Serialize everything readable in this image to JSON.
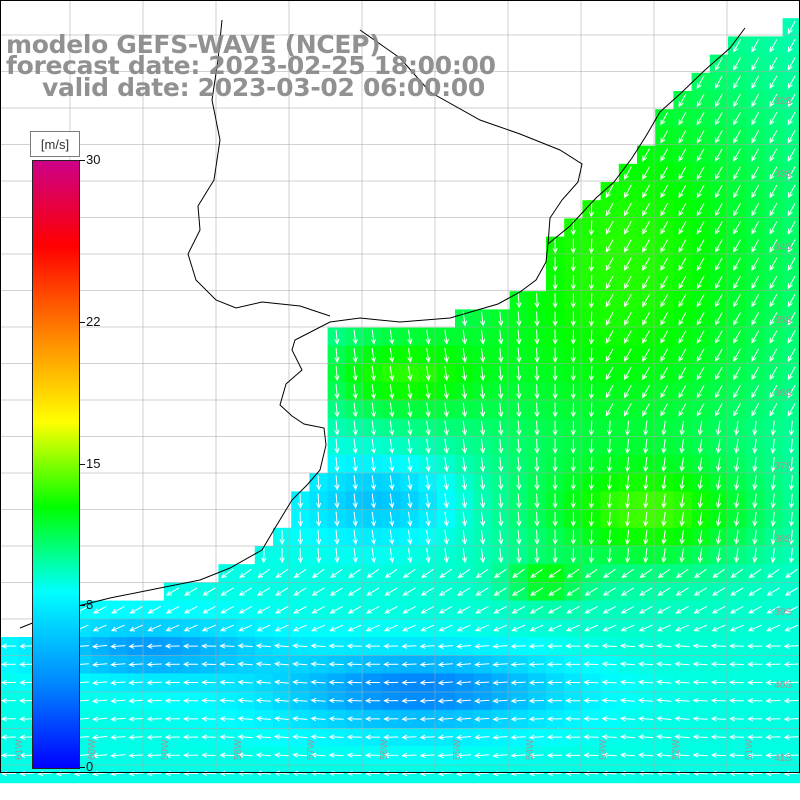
{
  "title": {
    "model": "modelo GEFS-WAVE (NCEP)",
    "forecast": "forecast date: 2023-02-25 18:00:00",
    "valid": "valid date: 2023-03-02 06:00:00"
  },
  "colorbar": {
    "units": "[m/s]",
    "ticks": [
      {
        "value": 30,
        "label": "30"
      },
      {
        "value": 22,
        "label": "22"
      },
      {
        "value": 15,
        "label": "15"
      },
      {
        "value": 8,
        "label": "8"
      },
      {
        "value": 0,
        "label": "0"
      }
    ],
    "colors": [
      "#0000ff",
      "#0088ff",
      "#00ffff",
      "#00ff00",
      "#ffff00",
      "#ff8800",
      "#ff0000",
      "#cc0088"
    ]
  },
  "lat_labels": [
    "32S",
    "33S",
    "34S",
    "35S",
    "36S",
    "37S",
    "38S",
    "39S",
    "40S",
    "41S"
  ],
  "lon_labels": [
    "61W",
    "60W",
    "59W",
    "58W",
    "57W",
    "56W",
    "55W",
    "54W",
    "53W",
    "52W",
    "51W"
  ],
  "colors": {
    "land": "#ffffff",
    "coast": "#000000",
    "grid": "#aaaaaa",
    "arrow": "#ffffff",
    "title_text": "#888888"
  }
}
